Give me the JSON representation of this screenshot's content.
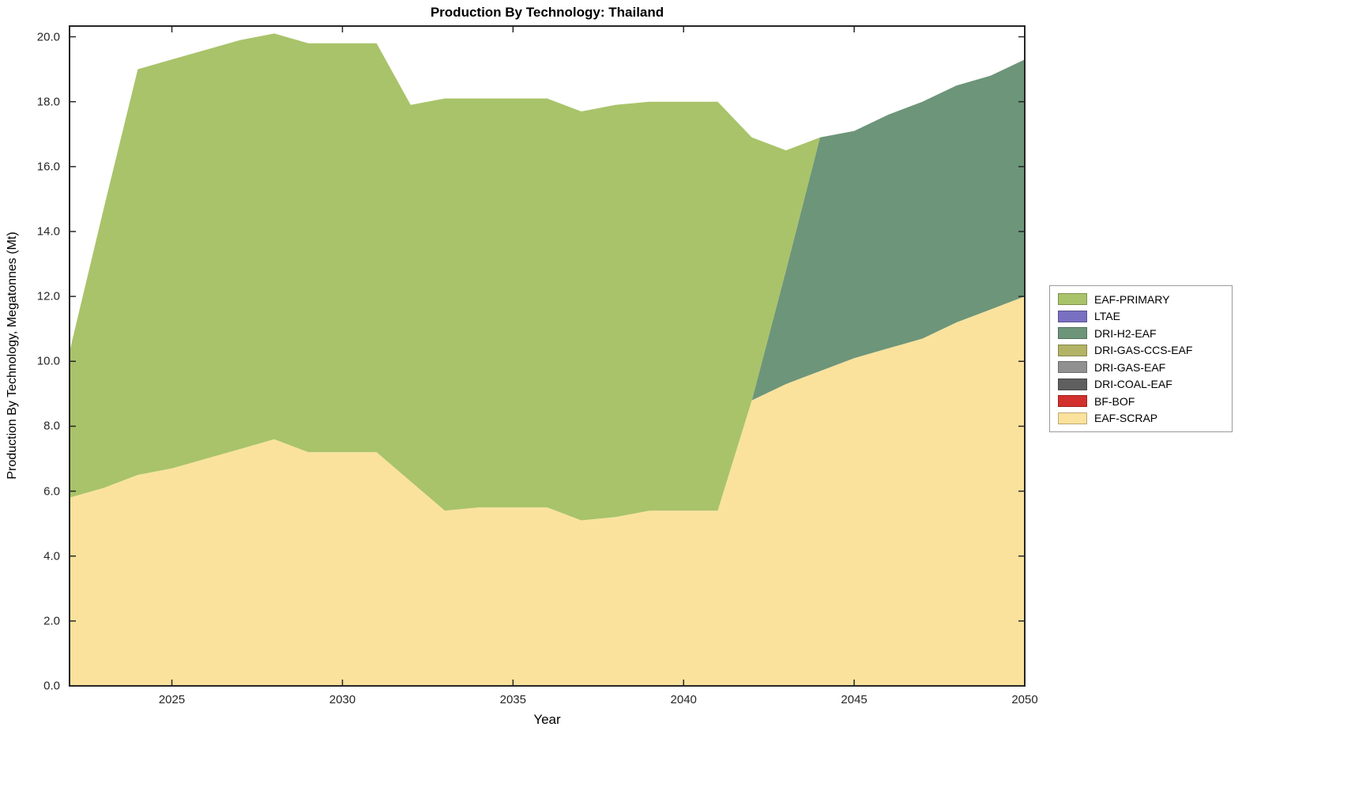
{
  "chart_data": {
    "type": "area",
    "stacked": true,
    "title": "Production By Technology: Thailand",
    "xlabel": "Year",
    "ylabel": "Production By Technology, Megatonnes (Mt)",
    "x": [
      2022,
      2023,
      2024,
      2025,
      2026,
      2027,
      2028,
      2029,
      2030,
      2031,
      2032,
      2033,
      2034,
      2035,
      2036,
      2037,
      2038,
      2039,
      2040,
      2041,
      2042,
      2043,
      2044,
      2045,
      2046,
      2047,
      2048,
      2049,
      2050
    ],
    "xlim": [
      2022,
      2050
    ],
    "ylim": [
      0,
      20.33
    ],
    "xticks": [
      2025,
      2030,
      2035,
      2040,
      2045,
      2050
    ],
    "yticks": [
      0,
      2,
      4,
      6,
      8,
      10,
      12,
      14,
      16,
      18,
      20
    ],
    "grid": false,
    "series": [
      {
        "name": "EAF-SCRAP",
        "color": "#fae29d",
        "values": [
          5.8,
          6.1,
          6.5,
          6.7,
          7.0,
          7.3,
          7.6,
          7.2,
          7.2,
          7.2,
          6.3,
          5.4,
          5.5,
          5.5,
          5.5,
          5.1,
          5.2,
          5.4,
          5.4,
          5.4,
          8.8,
          9.3,
          9.7,
          10.1,
          10.4,
          10.7,
          11.2,
          11.6,
          12.0
        ]
      },
      {
        "name": "BF-BOF",
        "color": "#d2302c",
        "values": [
          0,
          0,
          0,
          0,
          0,
          0,
          0,
          0,
          0,
          0,
          0,
          0,
          0,
          0,
          0,
          0,
          0,
          0,
          0,
          0,
          0,
          0,
          0,
          0,
          0,
          0,
          0,
          0,
          0
        ]
      },
      {
        "name": "DRI-COAL-EAF",
        "color": "#5f5f5f",
        "values": [
          0,
          0,
          0,
          0,
          0,
          0,
          0,
          0,
          0,
          0,
          0,
          0,
          0,
          0,
          0,
          0,
          0,
          0,
          0,
          0,
          0,
          0,
          0,
          0,
          0,
          0,
          0,
          0,
          0
        ]
      },
      {
        "name": "DRI-GAS-EAF",
        "color": "#909090",
        "values": [
          0,
          0,
          0,
          0,
          0,
          0,
          0,
          0,
          0,
          0,
          0,
          0,
          0,
          0,
          0,
          0,
          0,
          0,
          0,
          0,
          0,
          0,
          0,
          0,
          0,
          0,
          0,
          0,
          0
        ]
      },
      {
        "name": "DRI-GAS-CCS-EAF",
        "color": "#b3b366",
        "values": [
          0,
          0,
          0,
          0,
          0,
          0,
          0,
          0,
          0,
          0,
          0,
          0,
          0,
          0,
          0,
          0,
          0,
          0,
          0,
          0,
          0,
          0,
          0,
          0,
          0,
          0,
          0,
          0,
          0
        ]
      },
      {
        "name": "DRI-H2-EAF",
        "color": "#6d9579",
        "values": [
          0,
          0,
          0,
          0,
          0,
          0,
          0,
          0,
          0,
          0,
          0,
          0,
          0,
          0,
          0,
          0,
          0,
          0,
          0,
          0,
          0,
          3.5,
          7.2,
          7.0,
          7.2,
          7.3,
          7.3,
          7.2,
          7.3
        ]
      },
      {
        "name": "LTAE",
        "color": "#7a70c2",
        "values": [
          0,
          0,
          0,
          0,
          0,
          0,
          0,
          0,
          0,
          0,
          0,
          0,
          0,
          0,
          0,
          0,
          0,
          0,
          0,
          0,
          0,
          0,
          0,
          0,
          0,
          0,
          0,
          0,
          0
        ]
      },
      {
        "name": "EAF-PRIMARY",
        "color": "#a9c36a",
        "values": [
          4.5,
          8.6,
          12.5,
          12.6,
          12.6,
          12.6,
          12.5,
          12.6,
          12.6,
          12.6,
          11.6,
          12.7,
          12.6,
          12.6,
          12.6,
          12.6,
          12.7,
          12.6,
          12.6,
          12.6,
          8.1,
          3.7,
          0,
          0,
          0,
          0,
          0,
          0,
          0
        ]
      }
    ],
    "legend": {
      "position": "right-outside",
      "entries": [
        "EAF-PRIMARY",
        "LTAE",
        "DRI-H2-EAF",
        "DRI-GAS-CCS-EAF",
        "DRI-GAS-EAF",
        "DRI-COAL-EAF",
        "BF-BOF",
        "EAF-SCRAP"
      ]
    }
  }
}
